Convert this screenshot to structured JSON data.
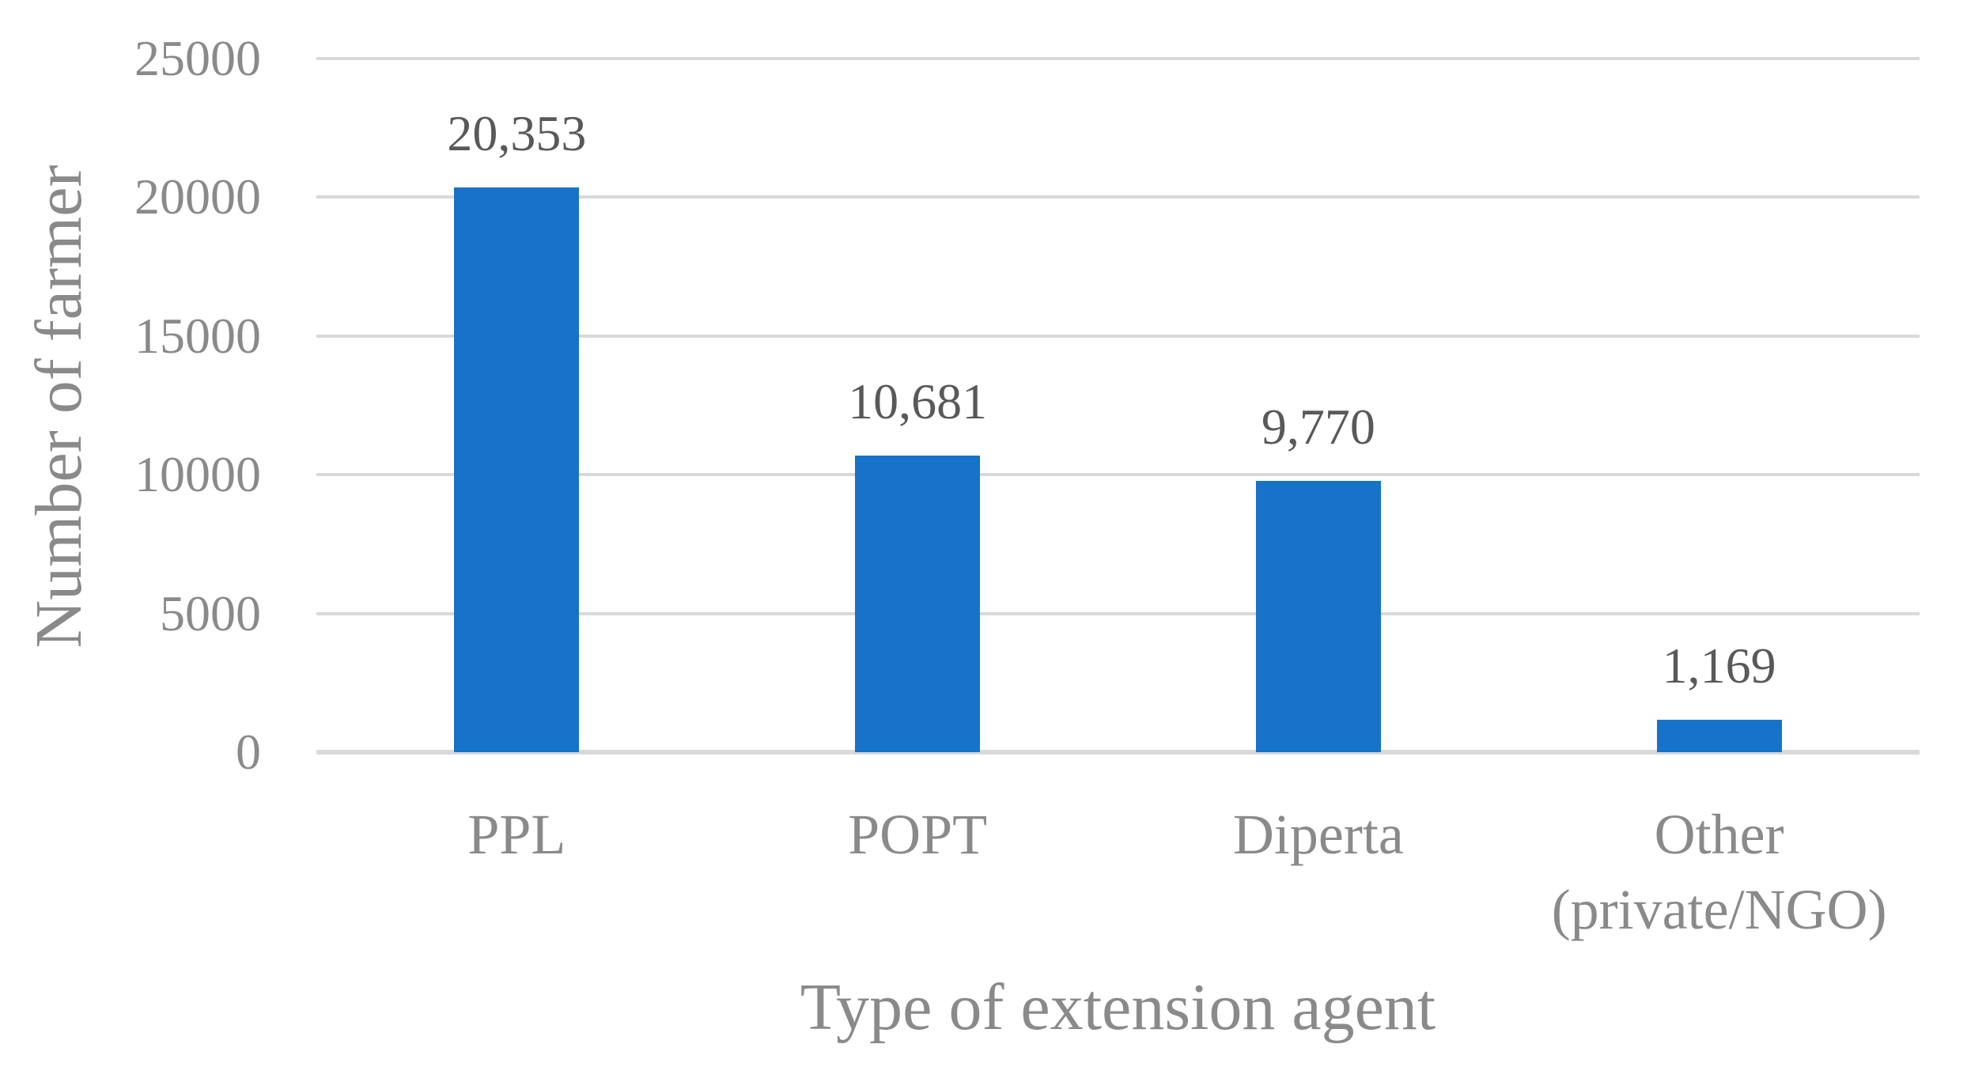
{
  "chart_data": {
    "type": "bar",
    "title": "",
    "xlabel": "Type of extension agent",
    "ylabel": "Number of farmer",
    "categories": [
      "PPL",
      "POPT",
      "Diperta",
      "Other (private/NGO)"
    ],
    "category_lines": [
      [
        "PPL"
      ],
      [
        "POPT"
      ],
      [
        "Diperta"
      ],
      [
        "Other",
        "(private/NGO)"
      ]
    ],
    "values": [
      20353,
      10681,
      9770,
      1169
    ],
    "value_labels": [
      "20,353",
      "10,681",
      "9,770",
      "1,169"
    ],
    "ylim": [
      0,
      25000
    ],
    "yticks": [
      0,
      5000,
      10000,
      15000,
      20000,
      25000
    ],
    "grid": true,
    "legend": "none",
    "colors": {
      "bar": "#1772c9",
      "gridline": "#d9d9d9",
      "axis_text": "#8a8a8a",
      "data_label_text": "#595959",
      "background": "#ffffff"
    }
  }
}
